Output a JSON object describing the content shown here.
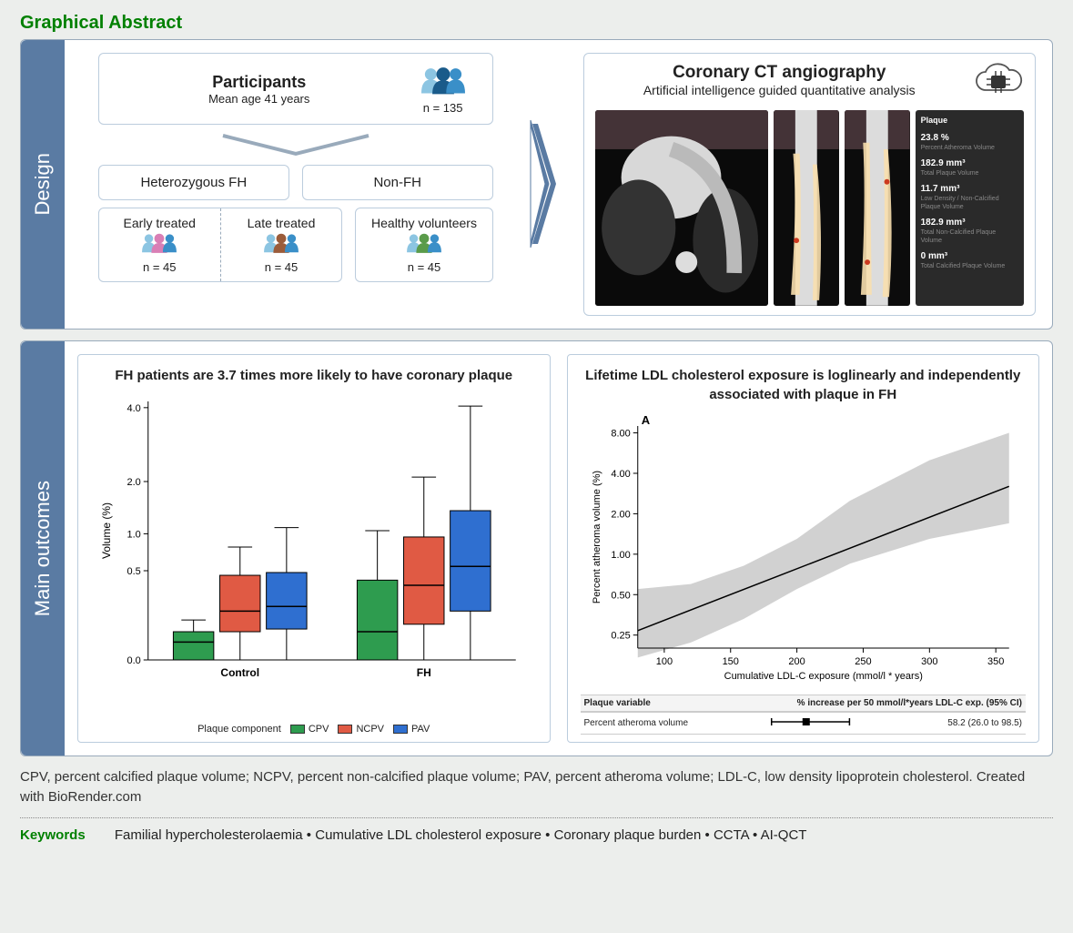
{
  "header": {
    "title": "Graphical Abstract"
  },
  "design": {
    "sidebar_label": "Design",
    "participants": {
      "title": "Participants",
      "subtitle": "Mean age 41 years",
      "n_label": "n = 135",
      "icon_colors": [
        "#8cc5e2",
        "#1a5b8a",
        "#3a8fc8"
      ]
    },
    "groups": {
      "fh_label": "Heterozygous FH",
      "nonfh_label": "Non-FH",
      "early": {
        "label": "Early treated",
        "n": "n = 45",
        "icon_colors": [
          "#8cc5e2",
          "#d97fb5",
          "#3a8fc8"
        ]
      },
      "late": {
        "label": "Late treated",
        "n": "n = 45",
        "icon_colors": [
          "#8cc5e2",
          "#9b5c3a",
          "#3a8fc8"
        ]
      },
      "healthy": {
        "label": "Healthy volunteers",
        "n": "n = 45",
        "icon_colors": [
          "#8cc5e2",
          "#5a9b4a",
          "#3a8fc8"
        ]
      }
    },
    "ccta": {
      "title": "Coronary CT angiography",
      "subtitle": "Artificial intelligence guided quantitative analysis",
      "overlay_color": "#f8dfae",
      "panel": {
        "header": "Plaque",
        "items": [
          {
            "value": "23.8 %",
            "label": "Percent Atheroma Volume"
          },
          {
            "value": "182.9 mm³",
            "label": "Total Plaque Volume"
          },
          {
            "value": "11.7 mm³",
            "label": "Low Density / Non-Calcified Plaque Volume"
          },
          {
            "value": "182.9 mm³",
            "label": "Total Non-Calcified Plaque Volume"
          },
          {
            "value": "0 mm³",
            "label": "Total Calcified Plaque Volume"
          }
        ]
      }
    }
  },
  "outcomes": {
    "sidebar_label": "Main outcomes",
    "boxplot": {
      "title": "FH patients are 3.7 times more likely to have coronary plaque",
      "ylabel": "Volume (%)",
      "yticks": [
        0.0,
        0.5,
        1.0,
        2.0,
        4.0
      ],
      "ylim": [
        0,
        4.2
      ],
      "x_categories": [
        "Control",
        "FH"
      ],
      "legend_title": "Plaque component",
      "series": [
        {
          "name": "CPV",
          "color": "#2e9c4f"
        },
        {
          "name": "NCPV",
          "color": "#e05a44"
        },
        {
          "name": "PAV",
          "color": "#2f6fd0"
        }
      ],
      "data": {
        "Control": {
          "CPV": {
            "q1": 0.0,
            "median": 0.02,
            "q3": 0.05,
            "lo": 0.0,
            "hi": 0.1
          },
          "NCPV": {
            "q1": 0.05,
            "median": 0.15,
            "q3": 0.45,
            "lo": 0.0,
            "hi": 0.8
          },
          "PAV": {
            "q1": 0.06,
            "median": 0.18,
            "q3": 0.48,
            "lo": 0.0,
            "hi": 1.1
          }
        },
        "FH": {
          "CPV": {
            "q1": 0.0,
            "median": 0.05,
            "q3": 0.4,
            "lo": 0.0,
            "hi": 1.05
          },
          "NCPV": {
            "q1": 0.08,
            "median": 0.35,
            "q3": 0.95,
            "lo": 0.0,
            "hi": 2.1
          },
          "PAV": {
            "q1": 0.15,
            "median": 0.55,
            "q3": 1.4,
            "lo": 0.0,
            "hi": 4.05
          }
        }
      },
      "box_width": 0.22
    },
    "logplot": {
      "title": "Lifetime LDL cholesterol exposure is loglinearly and independently associated with plaque in FH",
      "panel_letter": "A",
      "ylabel": "Percent atheroma volume (%)",
      "xlabel": "Cumulative LDL-C exposure (mmol/l * years)",
      "xticks": [
        100,
        150,
        200,
        250,
        300,
        350
      ],
      "xlim": [
        80,
        360
      ],
      "yticks": [
        0.25,
        0.5,
        1.0,
        2.0,
        4.0,
        8.0
      ],
      "ylim_log": [
        0.2,
        9.0
      ],
      "line": {
        "x": [
          80,
          360
        ],
        "y": [
          0.27,
          3.2
        ],
        "color": "#000000",
        "width": 1.5
      },
      "ci_band_color": "#b8b8b8",
      "ci_upper_y": [
        0.55,
        0.6,
        0.82,
        1.3,
        2.5,
        5.0,
        8.0
      ],
      "ci_lower_y": [
        0.17,
        0.22,
        0.33,
        0.55,
        0.85,
        1.3,
        1.7
      ],
      "ci_x": [
        80,
        120,
        160,
        200,
        240,
        300,
        360
      ],
      "forest": {
        "header_left": "Plaque variable",
        "header_right": "% increase per 50 mmol/l*years LDL-C exp. (95% CI)",
        "row_label": "Percent atheroma volume",
        "estimate": 58.2,
        "lo": 26.0,
        "hi": 98.5,
        "xmin": 0,
        "xmax": 110,
        "value_text": "58.2 (26.0 to 98.5)"
      }
    }
  },
  "footer": {
    "text": "CPV, percent calcified plaque volume; NCPV, percent non-calcified plaque volume; PAV, percent atheroma volume; LDL-C, low density lipoprotein cholesterol. Created with BioRender.com"
  },
  "keywords": {
    "label": "Keywords",
    "items": [
      "Familial hypercholesterolaemia",
      "Cumulative LDL cholesterol exposure",
      "Coronary plaque burden",
      "CCTA",
      "AI-QCT"
    ]
  }
}
